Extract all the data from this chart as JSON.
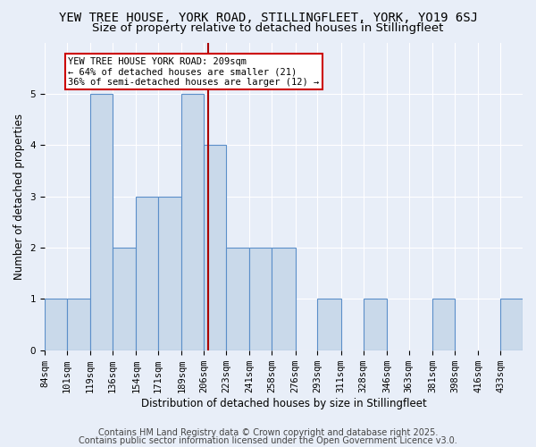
{
  "title": "YEW TREE HOUSE, YORK ROAD, STILLINGFLEET, YORK, YO19 6SJ",
  "subtitle": "Size of property relative to detached houses in Stillingfleet",
  "xlabel": "Distribution of detached houses by size in Stillingfleet",
  "ylabel": "Number of detached properties",
  "bins": [
    84,
    101,
    119,
    136,
    154,
    171,
    189,
    206,
    223,
    241,
    258,
    276,
    293,
    311,
    328,
    346,
    363,
    381,
    398,
    416,
    433
  ],
  "counts": [
    1,
    1,
    5,
    2,
    3,
    3,
    5,
    4,
    2,
    2,
    2,
    0,
    1,
    0,
    1,
    0,
    0,
    1,
    0,
    0,
    1
  ],
  "bar_color": "#c9d9ea",
  "bar_edge_color": "#5b8fc9",
  "red_line_x": 209,
  "annotation_line1": "YEW TREE HOUSE YORK ROAD: 209sqm",
  "annotation_line2": "← 64% of detached houses are smaller (21)",
  "annotation_line3": "36% of semi-detached houses are larger (12) →",
  "annotation_box_color": "#ffffff",
  "annotation_box_edge": "#cc0000",
  "red_line_color": "#aa0000",
  "ylim": [
    0,
    6
  ],
  "yticks": [
    0,
    1,
    2,
    3,
    4,
    5
  ],
  "footer1": "Contains HM Land Registry data © Crown copyright and database right 2025.",
  "footer2": "Contains public sector information licensed under the Open Government Licence v3.0.",
  "bg_color": "#e8eef8",
  "grid_color": "#ffffff",
  "title_fontsize": 10,
  "subtitle_fontsize": 9.5,
  "label_fontsize": 8.5,
  "tick_fontsize": 7.5,
  "annotation_fontsize": 7.5,
  "footer_fontsize": 7
}
